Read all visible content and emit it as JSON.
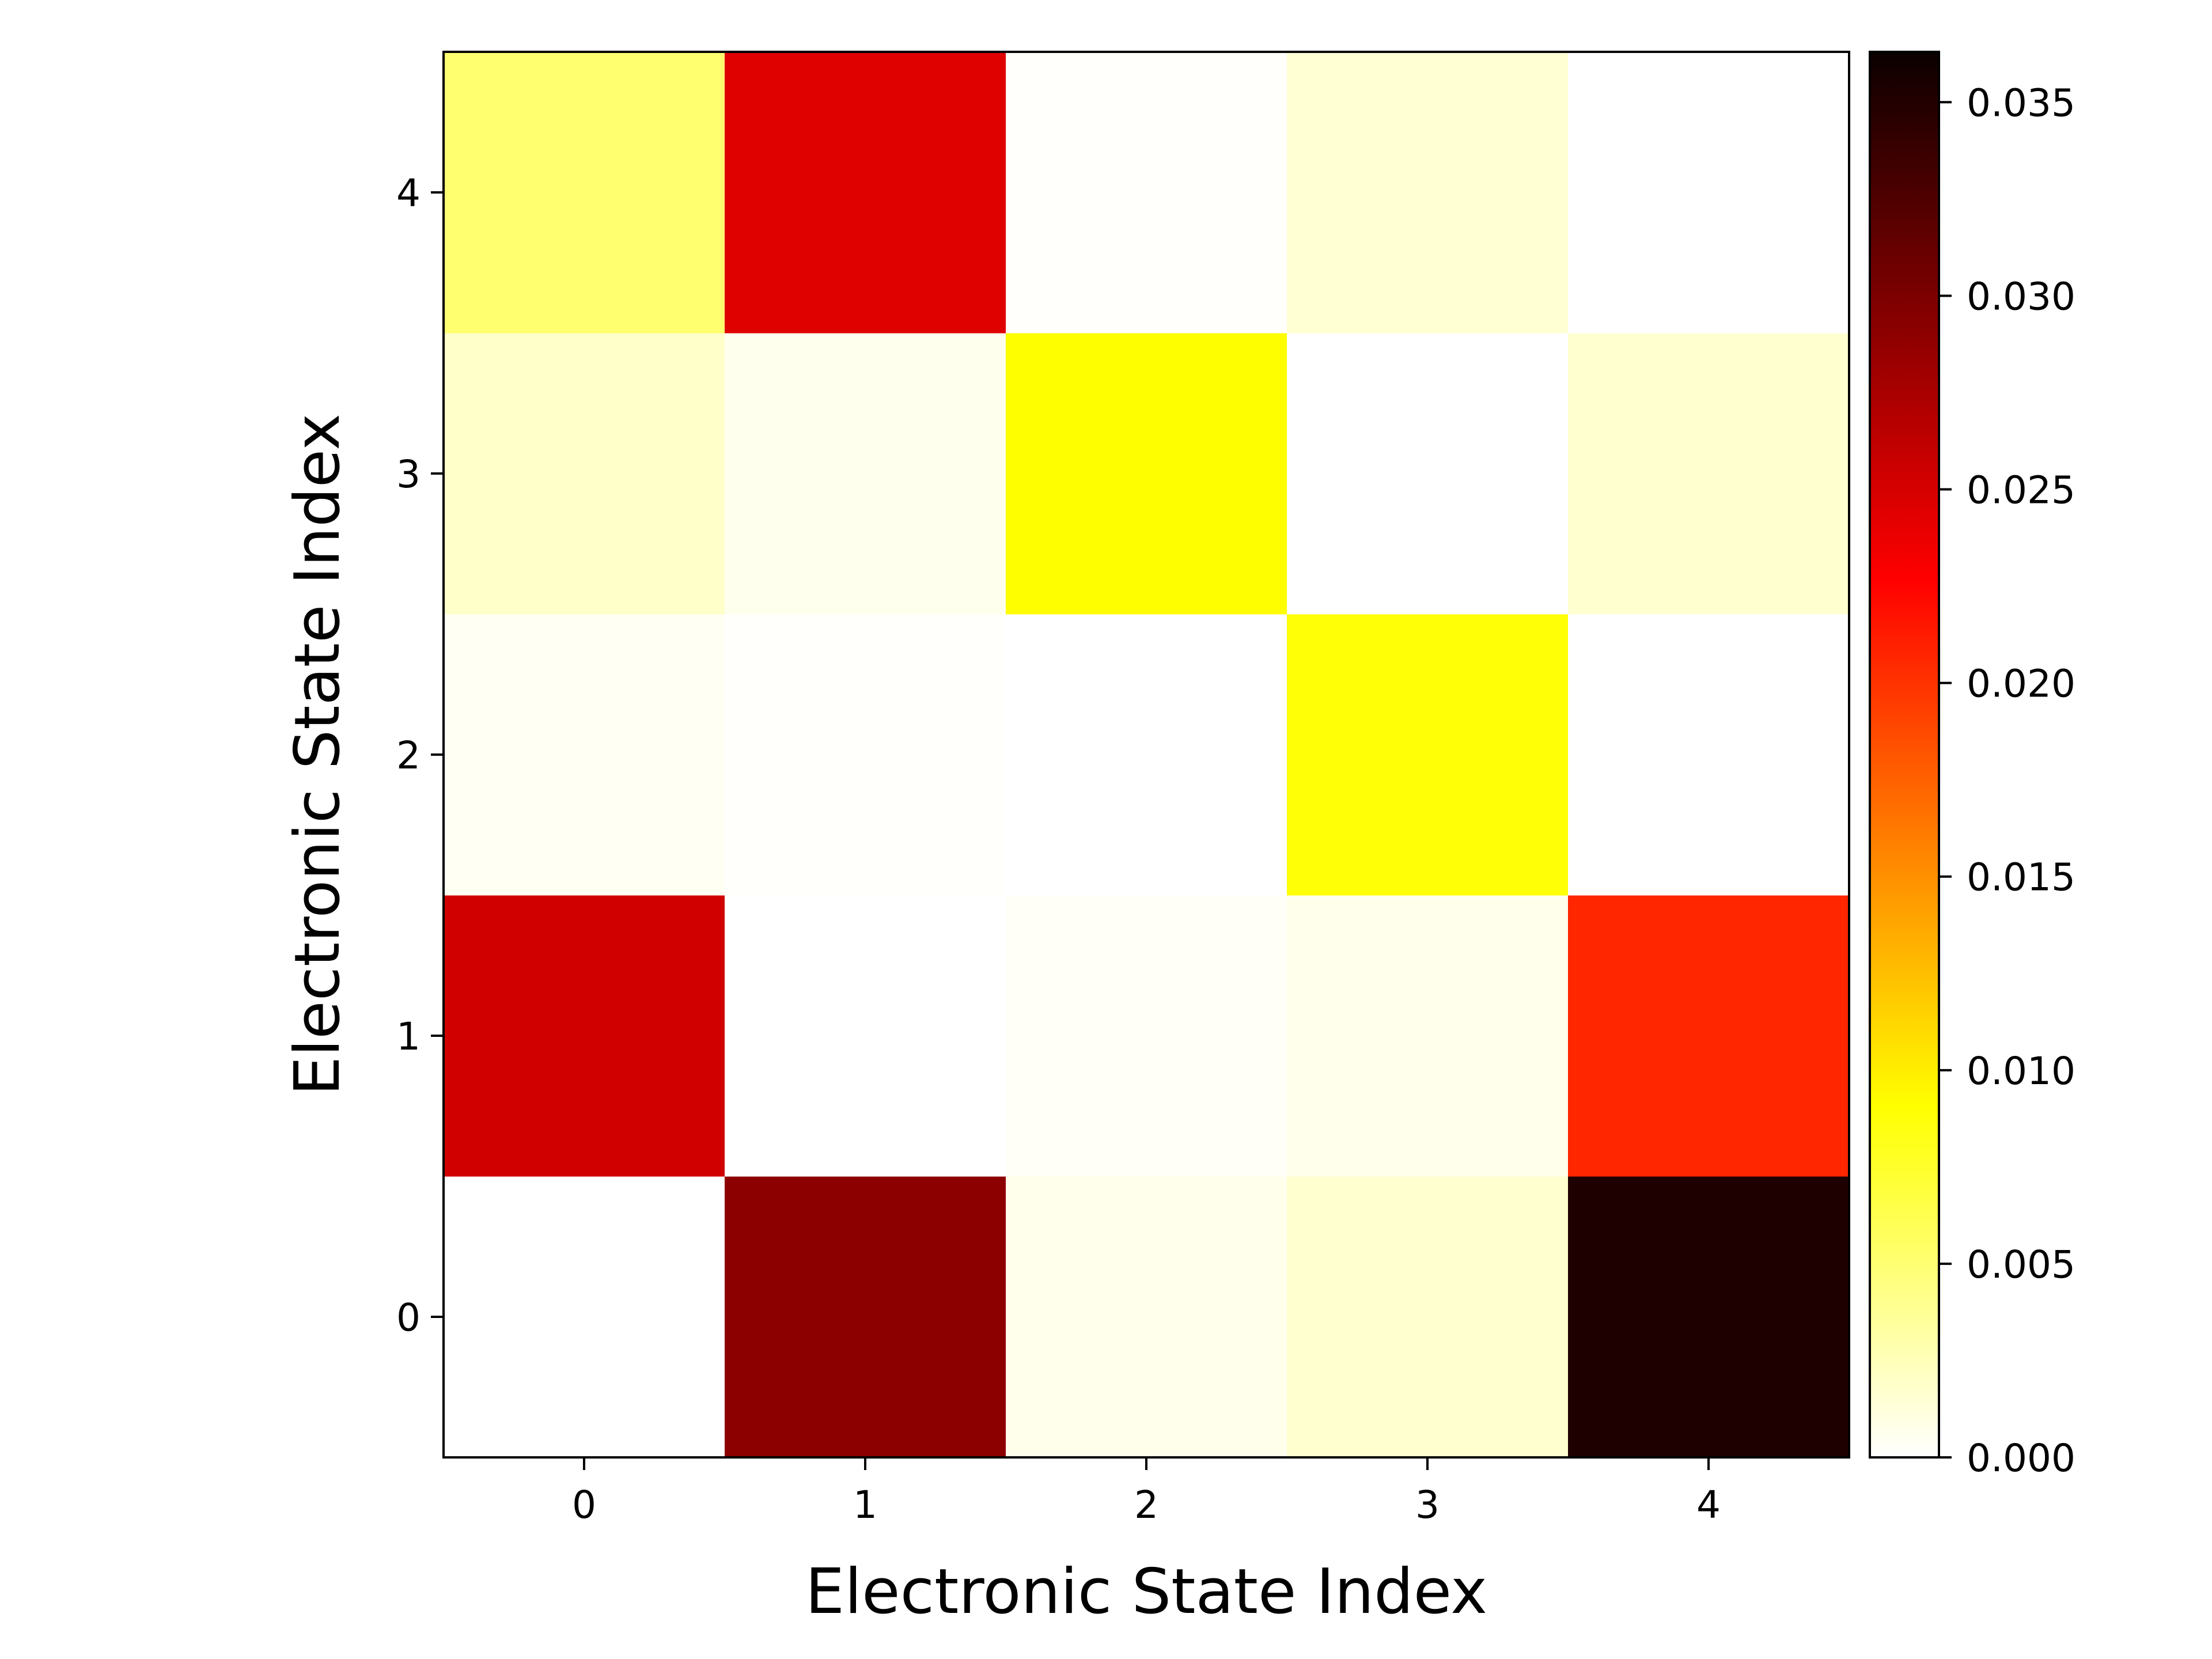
{
  "chart_data": {
    "type": "heatmap",
    "colormap": "hot_r",
    "xlabel": "Electronic State Index",
    "ylabel": "Electronic State Index",
    "x_categories": [
      "0",
      "1",
      "2",
      "3",
      "4"
    ],
    "y_categories": [
      "0",
      "1",
      "2",
      "3",
      "4"
    ],
    "matrix": [
      [
        0.0,
        0.0305,
        0.0007,
        0.0017,
        0.0362
      ],
      [
        0.027,
        0.0,
        0.0003,
        0.0007,
        0.021
      ],
      [
        0.0004,
        0.0001,
        0.0,
        0.009,
        0.0
      ],
      [
        0.0019,
        0.0006,
        0.0093,
        0.0,
        0.0017
      ],
      [
        0.0052,
        0.0262,
        0.0001,
        0.0016,
        0.0
      ]
    ],
    "colorbar": {
      "min": 0.0,
      "max": 0.0363,
      "ticks": [
        0.0,
        0.005,
        0.01,
        0.015,
        0.02,
        0.025,
        0.03,
        0.035
      ],
      "tick_labels": [
        "0.000",
        "0.005",
        "0.010",
        "0.015",
        "0.020",
        "0.025",
        "0.030",
        "0.035"
      ]
    }
  }
}
